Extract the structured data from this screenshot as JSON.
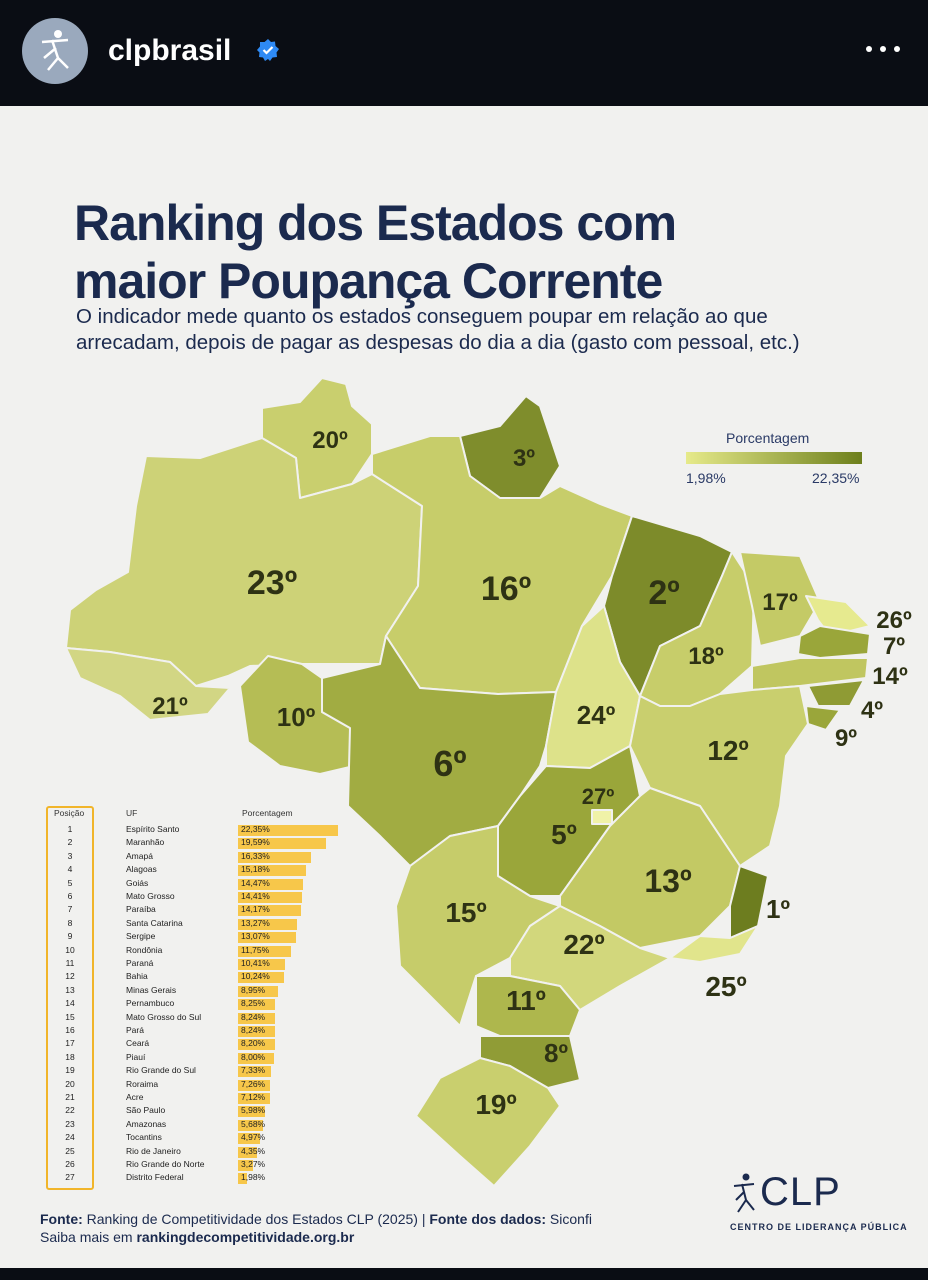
{
  "header": {
    "username": "clpbrasil",
    "verified_icon": "verified-badge-icon",
    "more_icon": "more-options-icon"
  },
  "post": {
    "title_line1": "Ranking dos Estados com",
    "title_line2": "maior Poupança Corrente",
    "subtitle_line1": "O indicador mede quanto os estados conseguem poupar em relação ao que",
    "subtitle_line2": "arrecadam, depois de pagar as despesas do dia a dia (gasto com pessoal, etc.)",
    "footer_source_label": "Fonte:",
    "footer_source": "Ranking de Competitividade dos Estados CLP (2025)",
    "footer_data_label": "Fonte dos dados:",
    "footer_data": "Siconfi",
    "footer_more": "Saiba mais em",
    "footer_link": "rankingdecompetitividade.org.br",
    "logo_text": "CLP",
    "logo_sub": "CENTRO DE LIDERANÇA PÚBLICA"
  },
  "chart_data": {
    "type": "table",
    "title": "Ranking dos Estados com maior Poupança Corrente",
    "legend": {
      "title": "Porcentagem",
      "min_label": "1,98%",
      "max_label": "22,35%",
      "min": 1.98,
      "max": 22.35
    },
    "columns": [
      "Posição",
      "UF",
      "Porcentagem"
    ],
    "rows": [
      {
        "pos": "1",
        "uf": "Espírito Santo",
        "pct": "22,35%",
        "value": 22.35
      },
      {
        "pos": "2",
        "uf": "Maranhão",
        "pct": "19,59%",
        "value": 19.59
      },
      {
        "pos": "3",
        "uf": "Amapá",
        "pct": "16,33%",
        "value": 16.33
      },
      {
        "pos": "4",
        "uf": "Alagoas",
        "pct": "15,18%",
        "value": 15.18
      },
      {
        "pos": "5",
        "uf": "Goiás",
        "pct": "14,47%",
        "value": 14.47
      },
      {
        "pos": "6",
        "uf": "Mato Grosso",
        "pct": "14,41%",
        "value": 14.41
      },
      {
        "pos": "7",
        "uf": "Paraíba",
        "pct": "14,17%",
        "value": 14.17
      },
      {
        "pos": "8",
        "uf": "Santa Catarina",
        "pct": "13,27%",
        "value": 13.27
      },
      {
        "pos": "9",
        "uf": "Sergipe",
        "pct": "13,07%",
        "value": 13.07
      },
      {
        "pos": "10",
        "uf": "Rondônia",
        "pct": "11,75%",
        "value": 11.75
      },
      {
        "pos": "11",
        "uf": "Paraná",
        "pct": "10,41%",
        "value": 10.41
      },
      {
        "pos": "12",
        "uf": "Bahia",
        "pct": "10,24%",
        "value": 10.24
      },
      {
        "pos": "13",
        "uf": "Minas Gerais",
        "pct": "8,95%",
        "value": 8.95
      },
      {
        "pos": "14",
        "uf": "Pernambuco",
        "pct": "8,25%",
        "value": 8.25
      },
      {
        "pos": "15",
        "uf": "Mato Grosso do Sul",
        "pct": "8,24%",
        "value": 8.24
      },
      {
        "pos": "16",
        "uf": "Pará",
        "pct": "8,24%",
        "value": 8.24
      },
      {
        "pos": "17",
        "uf": "Ceará",
        "pct": "8,20%",
        "value": 8.2
      },
      {
        "pos": "18",
        "uf": "Piauí",
        "pct": "8,00%",
        "value": 8.0
      },
      {
        "pos": "19",
        "uf": "Rio Grande do Sul",
        "pct": "7,33%",
        "value": 7.33
      },
      {
        "pos": "20",
        "uf": "Roraima",
        "pct": "7,26%",
        "value": 7.26
      },
      {
        "pos": "21",
        "uf": "Acre",
        "pct": "7,12%",
        "value": 7.12
      },
      {
        "pos": "22",
        "uf": "São Paulo",
        "pct": "5,98%",
        "value": 5.98
      },
      {
        "pos": "23",
        "uf": "Amazonas",
        "pct": "5,68%",
        "value": 5.68
      },
      {
        "pos": "24",
        "uf": "Tocantins",
        "pct": "4,97%",
        "value": 4.97
      },
      {
        "pos": "25",
        "uf": "Rio de Janeiro",
        "pct": "4,35%",
        "value": 4.35
      },
      {
        "pos": "26",
        "uf": "Rio Grande do Norte",
        "pct": "3,27%",
        "value": 3.27
      },
      {
        "pos": "27",
        "uf": "Distrito Federal",
        "pct": "1,98%",
        "value": 1.98
      }
    ],
    "map_labels": {
      "RR": "20º",
      "AP": "3º",
      "AM": "23º",
      "PA": "16º",
      "MA": "2º",
      "CE": "17º",
      "RN": "26º",
      "PB": "7º",
      "PE": "14º",
      "AL": "4º",
      "SE": "9º",
      "PI": "18º",
      "AC": "21º",
      "RO": "10º",
      "MT": "6º",
      "TO": "24º",
      "BA": "12º",
      "DF": "27º",
      "GO": "5º",
      "MG": "13º",
      "ES": "1º",
      "MS": "15º",
      "SP": "22º",
      "RJ": "25º",
      "PR": "11º",
      "SC": "8º",
      "RS": "19º"
    }
  }
}
